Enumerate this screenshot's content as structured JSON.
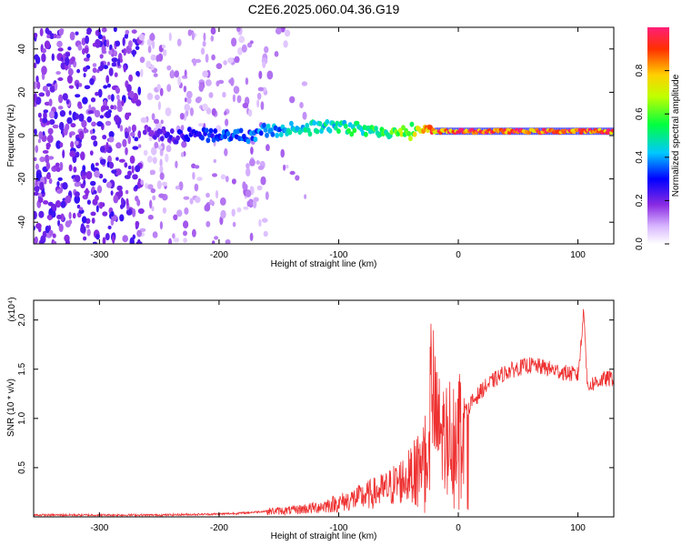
{
  "title": "C2E6.2025.060.04.36.G19",
  "chart_data": [
    {
      "type": "heatmap",
      "xlabel": "Height of straight line (km)",
      "ylabel": "Frequency (Hz)",
      "xlim": [
        -355,
        130
      ],
      "ylim": [
        -50,
        50
      ],
      "xticks": [
        -300,
        -200,
        -100,
        0,
        100
      ],
      "yticks": [
        -40,
        -20,
        0,
        20,
        40
      ],
      "colorbar": {
        "label": "Normalized spectral amplitude",
        "range": [
          0,
          1
        ],
        "ticks": [
          "0.0",
          "0.2",
          "0.4",
          "0.6",
          "0.8"
        ],
        "colormap": "rainbow (white-violet-blue-cyan-green-yellow-red)"
      },
      "ridge": {
        "x": [
          -260,
          -240,
          -220,
          -200,
          -180,
          -160,
          -140,
          -120,
          -100,
          -80,
          -60,
          -40,
          -20,
          0,
          20,
          40,
          60,
          80,
          100,
          130
        ],
        "frequency": [
          1,
          0,
          1,
          0,
          0,
          2,
          3,
          4,
          4,
          3,
          1,
          2,
          2,
          2,
          2,
          2,
          2,
          2,
          2,
          2
        ],
        "amplitude": [
          0.2,
          0.25,
          0.3,
          0.35,
          0.35,
          0.4,
          0.45,
          0.5,
          0.5,
          0.55,
          0.6,
          0.7,
          0.9,
          0.95,
          0.95,
          0.95,
          0.95,
          0.9,
          0.95,
          0.95
        ]
      }
    },
    {
      "type": "line",
      "xlabel": "Height of straight line (km)",
      "ylabel": "SNR (10 * v/v)",
      "yscale_label": "(x10⁴)",
      "xlim": [
        -355,
        130
      ],
      "ylim": [
        0,
        2.2
      ],
      "xticks": [
        -300,
        -200,
        -100,
        0,
        100
      ],
      "yticks": [
        "0.5",
        "1.0",
        "1.5",
        "2.0"
      ],
      "series": [
        {
          "color": "#ee3030",
          "x": [
            -355,
            -300,
            -250,
            -200,
            -180,
            -160,
            -140,
            -120,
            -100,
            -80,
            -60,
            -40,
            -30,
            -25,
            -22,
            -20,
            -15,
            -10,
            0,
            10,
            20,
            30,
            40,
            50,
            60,
            70,
            80,
            90,
            100,
            103,
            105,
            108,
            110,
            120,
            130
          ],
          "y": [
            0.02,
            0.02,
            0.02,
            0.03,
            0.04,
            0.06,
            0.07,
            0.1,
            0.15,
            0.22,
            0.3,
            0.45,
            0.6,
            0.9,
            1.55,
            1.1,
            0.9,
            0.9,
            1.0,
            1.15,
            1.3,
            1.4,
            1.48,
            1.52,
            1.55,
            1.53,
            1.5,
            1.47,
            1.45,
            1.8,
            2.15,
            1.3,
            1.35,
            1.4,
            1.42
          ]
        }
      ]
    }
  ]
}
